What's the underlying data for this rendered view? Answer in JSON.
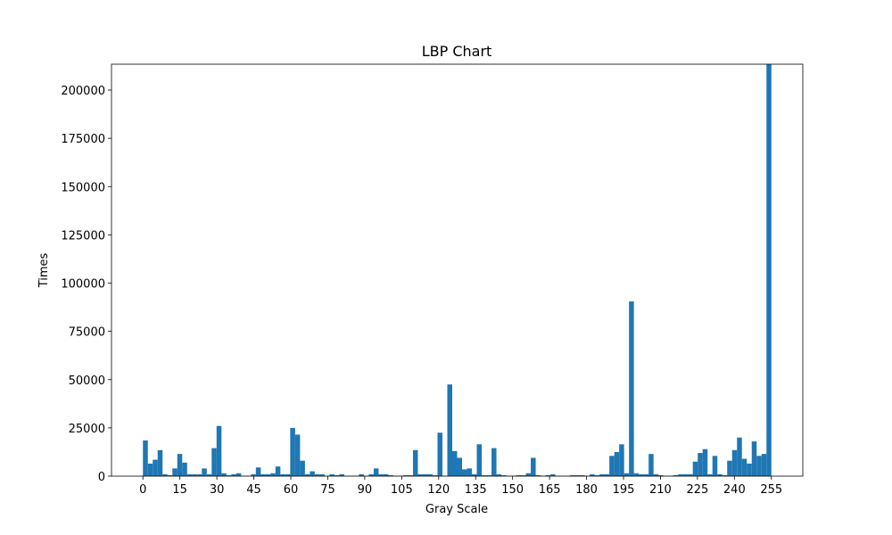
{
  "chart_data": {
    "type": "histogram",
    "title": "LBP Chart",
    "x_label": "Gray Scale",
    "y_label": "Times",
    "color": "#1f77b4",
    "bins": [
      0,
      1.9921875,
      3.984375,
      5.9765625,
      7.96875,
      9.9609375,
      11.953125,
      13.9453125,
      15.9375,
      17.9296875,
      19.921875,
      21.9140625,
      23.90625,
      25.8984375,
      27.890625,
      29.8828125,
      31.875,
      33.8671875,
      35.859375,
      37.8515625,
      39.84375,
      41.8359375,
      43.828125,
      45.8203125,
      47.8125,
      49.8046875,
      51.796875,
      53.7890625,
      55.78125,
      57.7734375,
      59.765625,
      61.7578125,
      63.75,
      65.7421875,
      67.734375,
      69.7265625,
      71.71875,
      73.7109375,
      75.703125,
      77.6953125,
      79.6875,
      81.6796875,
      83.671875,
      85.6640625,
      87.65625,
      89.6484375,
      91.640625,
      93.6328125,
      95.625,
      97.6171875,
      99.609375,
      101.6015625,
      103.59375,
      105.5859375,
      107.578125,
      109.5703125,
      111.5625,
      113.5546875,
      115.546875,
      117.5390625,
      119.53125,
      121.5234375,
      123.515625,
      125.5078125,
      127.5,
      129.4921875,
      131.484375,
      133.4765625,
      135.46875,
      137.4609375,
      139.453125,
      141.4453125,
      143.4375,
      145.4296875,
      147.421875,
      149.4140625,
      151.40625,
      153.3984375,
      155.390625,
      157.3828125,
      159.375,
      161.3671875,
      163.359375,
      165.3515625,
      167.34375,
      169.3359375,
      171.328125,
      173.3203125,
      175.3125,
      177.3046875,
      179.296875,
      181.2890625,
      183.28125,
      185.2734375,
      187.265625,
      189.2578125,
      191.25,
      193.2421875,
      195.234375,
      197.2265625,
      199.21875,
      201.2109375,
      203.203125,
      205.1953125,
      207.1875,
      209.1796875,
      211.171875,
      213.1640625,
      215.15625,
      217.1484375,
      219.140625,
      221.1328125,
      223.125,
      225.1171875,
      227.109375,
      229.1015625,
      231.09375,
      233.0859375,
      235.078125,
      237.0703125,
      239.0625,
      241.0546875,
      243.046875,
      245.0390625,
      247.03125,
      249.0234375,
      251.015625,
      253.0078125,
      255
    ],
    "values": [
      18500,
      6500,
      8500,
      13500,
      1000,
      500,
      4000,
      11500,
      7000,
      1000,
      1000,
      1000,
      4000,
      1000,
      14500,
      26000,
      1500,
      500,
      1000,
      1500,
      200,
      200,
      1000,
      4500,
      1000,
      1000,
      1500,
      5000,
      1000,
      1000,
      25000,
      21500,
      8000,
      1000,
      2500,
      1000,
      1000,
      200,
      1000,
      500,
      1000,
      200,
      200,
      200,
      1000,
      200,
      1000,
      4000,
      1000,
      1000,
      500,
      200,
      200,
      500,
      500,
      13500,
      1000,
      1000,
      1000,
      500,
      22500,
      200,
      47500,
      13000,
      9500,
      3500,
      4000,
      1000,
      16500,
      500,
      500,
      14500,
      1000,
      500,
      200,
      200,
      500,
      500,
      1500,
      9500,
      500,
      200,
      500,
      1000,
      200,
      200,
      200,
      500,
      500,
      500,
      200,
      1000,
      500,
      1000,
      1000,
      10500,
      12500,
      16500,
      1500,
      90500,
      1500,
      1000,
      1000,
      11500,
      1000,
      500,
      200,
      200,
      500,
      1000,
      1000,
      1000,
      7500,
      12000,
      14000,
      1000,
      10500,
      1000,
      500,
      8000,
      13500,
      20000,
      9000,
      6500,
      18000,
      10500,
      11500,
      213400
    ],
    "xlim": [
      -12.75,
      267.75
    ],
    "xticks": [
      0,
      15,
      30,
      45,
      60,
      75,
      90,
      105,
      120,
      135,
      150,
      165,
      180,
      195,
      210,
      225,
      240,
      255
    ],
    "ylim": [
      0,
      213400
    ],
    "yticks": [
      0,
      25000,
      50000,
      75000,
      100000,
      125000,
      150000,
      175000,
      200000
    ]
  }
}
